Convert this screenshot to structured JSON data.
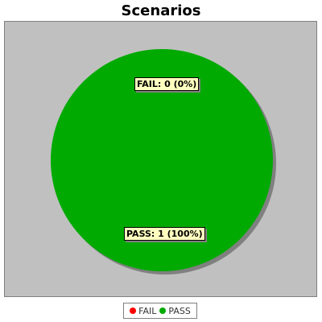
{
  "chart_data": {
    "type": "pie",
    "title": "Scenarios",
    "slices": [
      {
        "name": "FAIL",
        "value": 0,
        "label": "FAIL: 0 (0%)",
        "color": "#ff0000"
      },
      {
        "name": "PASS",
        "value": 1,
        "label": "PASS: 1 (100%)",
        "color": "#00aa00"
      }
    ],
    "legend": {
      "position": "bottom",
      "entries": [
        "FAIL",
        "PASS"
      ]
    },
    "plot_background": "#c0c0c0"
  }
}
